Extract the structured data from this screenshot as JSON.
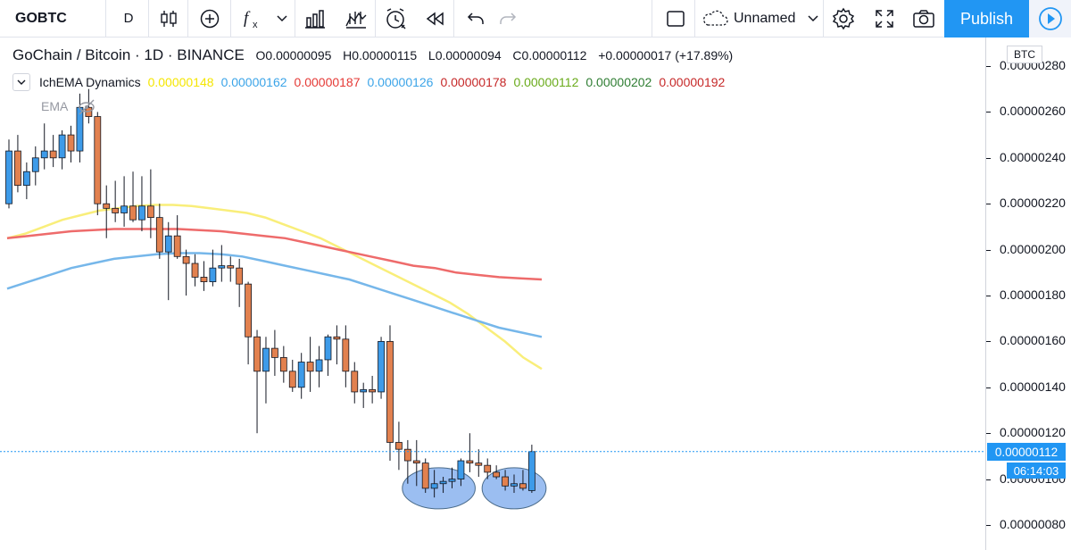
{
  "toolbar": {
    "symbol": "GOBTC",
    "interval": "D",
    "layout_name": "Unnamed",
    "publish_label": "Publish",
    "icons": [
      "candles-icon",
      "add-circle-icon",
      "fx-indicators-icon",
      "chevron-down-icon",
      "templates-icon",
      "replay-icon",
      "alert-clock-icon",
      "rewind-icon",
      "undo-icon",
      "redo-icon",
      "rectangle-icon",
      "cloud-icon",
      "gear-icon",
      "expand-icon",
      "camera-icon",
      "play-circle-icon"
    ]
  },
  "legend": {
    "pair": "GoChain / Bitcoin · 1D · BINANCE",
    "open": "O0.00000095",
    "high": "H0.00000115",
    "low": "L0.00000094",
    "close": "C0.00000112",
    "change": "+0.00000017 (+17.89%)",
    "indicator_name": "IchEMA Dynamics",
    "indicator_values": [
      {
        "value": "0.00000148",
        "color": "#f5e600"
      },
      {
        "value": "0.00000162",
        "color": "#3ba4e8"
      },
      {
        "value": "0.00000187",
        "color": "#e53935"
      },
      {
        "value": "0.00000126",
        "color": "#3ba4e8"
      },
      {
        "value": "0.00000178",
        "color": "#c62828"
      },
      {
        "value": "0.00000112",
        "color": "#6aab1b"
      },
      {
        "value": "0.00000202",
        "color": "#2e7d32"
      },
      {
        "value": "0.00000192",
        "color": "#c62828"
      }
    ],
    "sub_indicator": "EMA"
  },
  "axis": {
    "currency": "BTC",
    "ticks": [
      "0.00000280",
      "0.00000260",
      "0.00000240",
      "0.00000220",
      "0.00000200",
      "0.00000180",
      "0.00000160",
      "0.00000140",
      "0.00000120",
      "0.00000100",
      "0.00000080"
    ],
    "last_price": "0.00000112",
    "countdown": "06:14:03"
  },
  "colors": {
    "up": "#3d9be9",
    "down": "#e2814f",
    "ema_yellow": "#f9ee7a",
    "ema_blue": "#76b7ea",
    "ema_red": "#ee6b6b",
    "accent": "#2196f3",
    "highlight_fill": "#8ab3ef"
  },
  "chart_data": {
    "type": "candlestick",
    "price_unit": "BTC",
    "ylim": [
      7.3e-07,
      2.9e-06
    ],
    "candles": [
      {
        "o": 220,
        "h": 248,
        "l": 218,
        "c": 243
      },
      {
        "o": 243,
        "h": 250,
        "l": 225,
        "c": 228
      },
      {
        "o": 228,
        "h": 238,
        "l": 222,
        "c": 234
      },
      {
        "o": 234,
        "h": 245,
        "l": 228,
        "c": 240
      },
      {
        "o": 240,
        "h": 255,
        "l": 235,
        "c": 243
      },
      {
        "o": 243,
        "h": 250,
        "l": 236,
        "c": 240
      },
      {
        "o": 240,
        "h": 252,
        "l": 235,
        "c": 250
      },
      {
        "o": 250,
        "h": 254,
        "l": 238,
        "c": 243
      },
      {
        "o": 243,
        "h": 268,
        "l": 238,
        "c": 262
      },
      {
        "o": 262,
        "h": 270,
        "l": 255,
        "c": 258
      },
      {
        "o": 258,
        "h": 260,
        "l": 215,
        "c": 220
      },
      {
        "o": 220,
        "h": 228,
        "l": 205,
        "c": 218
      },
      {
        "o": 218,
        "h": 230,
        "l": 212,
        "c": 216
      },
      {
        "o": 216,
        "h": 232,
        "l": 210,
        "c": 219
      },
      {
        "o": 219,
        "h": 234,
        "l": 212,
        "c": 213
      },
      {
        "o": 213,
        "h": 232,
        "l": 208,
        "c": 219
      },
      {
        "o": 219,
        "h": 235,
        "l": 205,
        "c": 214
      },
      {
        "o": 214,
        "h": 220,
        "l": 196,
        "c": 199
      },
      {
        "o": 199,
        "h": 212,
        "l": 178,
        "c": 206
      },
      {
        "o": 206,
        "h": 215,
        "l": 196,
        "c": 197
      },
      {
        "o": 197,
        "h": 200,
        "l": 180,
        "c": 194
      },
      {
        "o": 194,
        "h": 198,
        "l": 184,
        "c": 188
      },
      {
        "o": 188,
        "h": 195,
        "l": 182,
        "c": 186
      },
      {
        "o": 186,
        "h": 200,
        "l": 184,
        "c": 192
      },
      {
        "o": 192,
        "h": 202,
        "l": 186,
        "c": 193
      },
      {
        "o": 193,
        "h": 197,
        "l": 186,
        "c": 192
      },
      {
        "o": 192,
        "h": 196,
        "l": 175,
        "c": 185
      },
      {
        "o": 185,
        "h": 186,
        "l": 150,
        "c": 162
      },
      {
        "o": 162,
        "h": 165,
        "l": 120,
        "c": 147
      },
      {
        "o": 147,
        "h": 162,
        "l": 133,
        "c": 157
      },
      {
        "o": 157,
        "h": 165,
        "l": 145,
        "c": 153
      },
      {
        "o": 153,
        "h": 158,
        "l": 142,
        "c": 147
      },
      {
        "o": 147,
        "h": 152,
        "l": 138,
        "c": 140
      },
      {
        "o": 140,
        "h": 155,
        "l": 135,
        "c": 151
      },
      {
        "o": 151,
        "h": 162,
        "l": 138,
        "c": 147
      },
      {
        "o": 147,
        "h": 158,
        "l": 140,
        "c": 152
      },
      {
        "o": 152,
        "h": 163,
        "l": 145,
        "c": 162
      },
      {
        "o": 162,
        "h": 167,
        "l": 150,
        "c": 161
      },
      {
        "o": 161,
        "h": 167,
        "l": 140,
        "c": 147
      },
      {
        "o": 147,
        "h": 151,
        "l": 133,
        "c": 138
      },
      {
        "o": 138,
        "h": 142,
        "l": 131,
        "c": 139
      },
      {
        "o": 139,
        "h": 145,
        "l": 133,
        "c": 138
      },
      {
        "o": 138,
        "h": 162,
        "l": 135,
        "c": 160
      },
      {
        "o": 160,
        "h": 167,
        "l": 108,
        "c": 116
      },
      {
        "o": 116,
        "h": 125,
        "l": 104,
        "c": 113
      },
      {
        "o": 113,
        "h": 117,
        "l": 98,
        "c": 108
      },
      {
        "o": 108,
        "h": 117,
        "l": 97,
        "c": 107
      },
      {
        "o": 107,
        "h": 109,
        "l": 94,
        "c": 96
      },
      {
        "o": 96,
        "h": 104,
        "l": 92,
        "c": 98
      },
      {
        "o": 98,
        "h": 101,
        "l": 94,
        "c": 99
      },
      {
        "o": 99,
        "h": 105,
        "l": 96,
        "c": 100
      },
      {
        "o": 100,
        "h": 109,
        "l": 97,
        "c": 108
      },
      {
        "o": 108,
        "h": 120,
        "l": 103,
        "c": 107
      },
      {
        "o": 107,
        "h": 113,
        "l": 101,
        "c": 106
      },
      {
        "o": 106,
        "h": 109,
        "l": 100,
        "c": 103
      },
      {
        "o": 103,
        "h": 106,
        "l": 100,
        "c": 101
      },
      {
        "o": 101,
        "h": 104,
        "l": 95,
        "c": 97
      },
      {
        "o": 97,
        "h": 102,
        "l": 94,
        "c": 98
      },
      {
        "o": 98,
        "h": 104,
        "l": 95,
        "c": 96
      },
      {
        "o": 95,
        "h": 115,
        "l": 94,
        "c": 112
      }
    ],
    "ema_lines": [
      {
        "color": "#f9ee7a",
        "values": [
          205,
          207,
          210,
          213,
          215,
          217,
          218,
          219,
          219.5,
          219.5,
          219,
          218,
          217,
          216,
          214,
          211,
          208,
          205,
          201,
          197,
          193,
          189,
          185,
          181,
          177,
          172,
          166,
          160,
          153,
          148
        ]
      },
      {
        "color": "#76b7ea",
        "values": [
          183,
          186,
          189,
          192,
          194,
          196,
          197,
          198,
          198.5,
          198.5,
          198,
          197,
          195,
          193,
          191,
          189,
          187,
          184,
          181,
          178,
          175,
          172,
          169,
          166,
          164,
          162
        ]
      },
      {
        "color": "#ee6b6b",
        "values": [
          205,
          206,
          207,
          208,
          208.5,
          209,
          209,
          209,
          209,
          208.5,
          208,
          207,
          206,
          205,
          203,
          201,
          199,
          197,
          195,
          193,
          192,
          190,
          189,
          188,
          187.5,
          187
        ]
      }
    ],
    "last_price": 112,
    "highlight_ellipses": [
      {
        "center_price": 96,
        "candle_range": [
          46,
          51
        ]
      },
      {
        "center_price": 96,
        "candle_range": [
          55,
          59
        ]
      }
    ]
  }
}
